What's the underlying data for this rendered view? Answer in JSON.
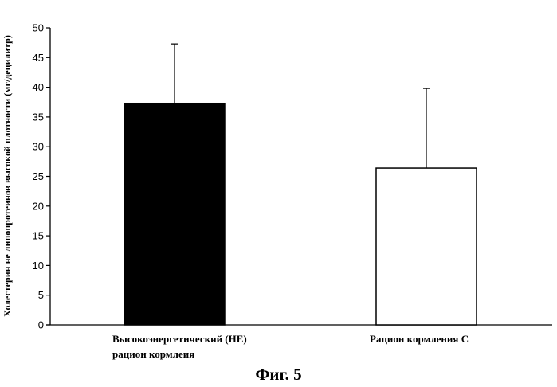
{
  "chart_data": {
    "type": "bar",
    "categories": [
      [
        "Высокоэнергетический (НЕ)",
        "рацион кормлеия"
      ],
      [
        "Рацион кормления С"
      ]
    ],
    "values": [
      37.3,
      26.4
    ],
    "error_upper": [
      47.3,
      39.8
    ],
    "bar_colors": [
      "#000000",
      "#ffffff"
    ],
    "ylabel": "Холестерин не липопротеинов высокой плотности (мг/децилитр)",
    "ylim": [
      0,
      50
    ],
    "yticks": [
      0,
      5,
      10,
      15,
      20,
      25,
      30,
      35,
      40,
      45,
      50
    ],
    "grid": false
  },
  "caption": "Фиг. 5"
}
